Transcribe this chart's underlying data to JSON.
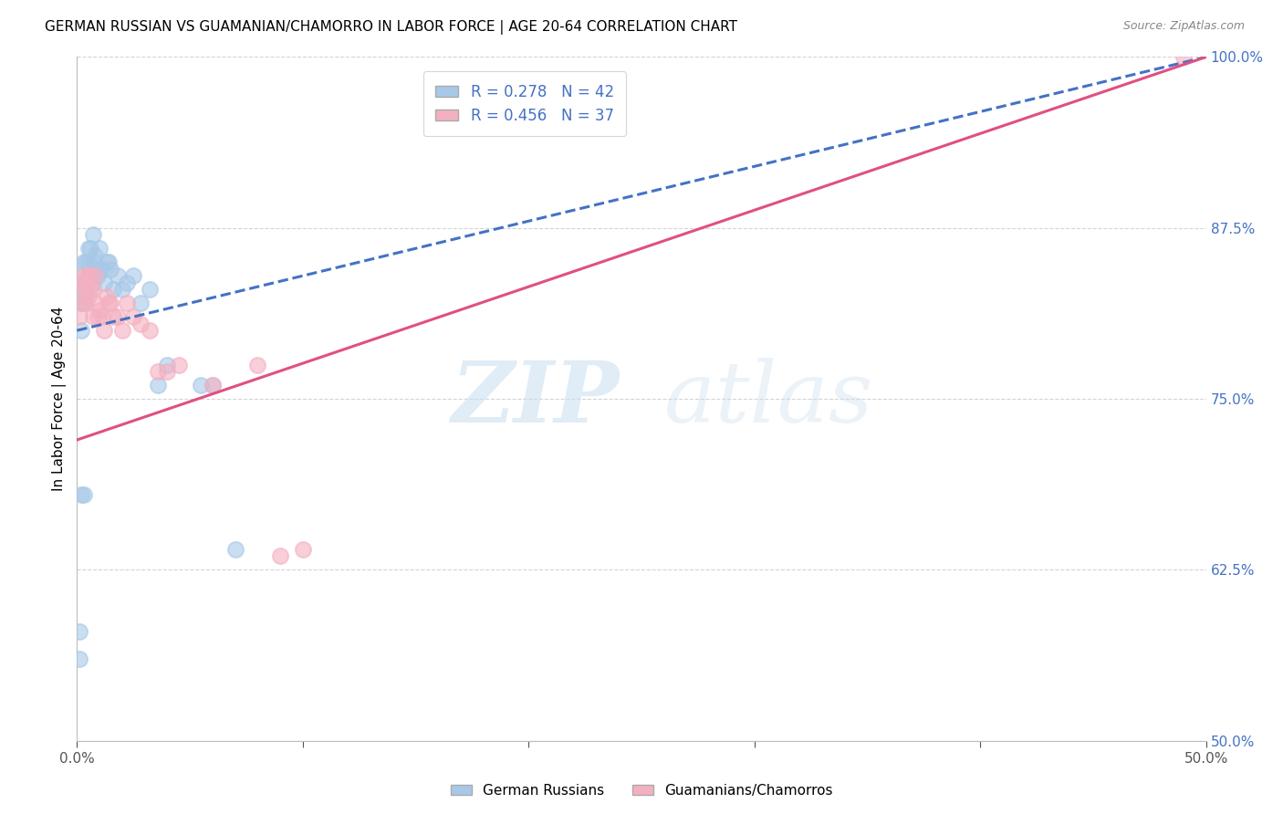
{
  "title": "GERMAN RUSSIAN VS GUAMANIAN/CHAMORRO IN LABOR FORCE | AGE 20-64 CORRELATION CHART",
  "source": "Source: ZipAtlas.com",
  "ylabel": "In Labor Force | Age 20-64",
  "xlim": [
    0.0,
    0.5
  ],
  "ylim": [
    0.5,
    1.0
  ],
  "xticks": [
    0.0,
    0.1,
    0.2,
    0.3,
    0.4,
    0.5
  ],
  "xticklabels": [
    "0.0%",
    "",
    "",
    "",
    "",
    "50.0%"
  ],
  "yticks": [
    0.5,
    0.625,
    0.75,
    0.875,
    1.0
  ],
  "yticklabels": [
    "50.0%",
    "62.5%",
    "75.0%",
    "87.5%",
    "100.0%"
  ],
  "blue_R": 0.278,
  "blue_N": 42,
  "pink_R": 0.456,
  "pink_N": 37,
  "blue_color": "#a8c8e8",
  "pink_color": "#f4b0c0",
  "blue_line_color": "#4472c4",
  "pink_line_color": "#e05080",
  "legend_label_blue": "German Russians",
  "legend_label_pink": "Guamanians/Chamorros",
  "watermark_zip": "ZIP",
  "watermark_atlas": "atlas",
  "blue_x": [
    0.001,
    0.001,
    0.002,
    0.002,
    0.002,
    0.003,
    0.003,
    0.003,
    0.004,
    0.004,
    0.005,
    0.005,
    0.005,
    0.006,
    0.006,
    0.007,
    0.007,
    0.007,
    0.008,
    0.008,
    0.009,
    0.01,
    0.01,
    0.011,
    0.012,
    0.013,
    0.014,
    0.015,
    0.016,
    0.018,
    0.02,
    0.022,
    0.025,
    0.028,
    0.032,
    0.036,
    0.04,
    0.055,
    0.06,
    0.07,
    0.002,
    0.003
  ],
  "blue_y": [
    0.56,
    0.58,
    0.8,
    0.82,
    0.84,
    0.82,
    0.83,
    0.85,
    0.83,
    0.85,
    0.84,
    0.85,
    0.86,
    0.84,
    0.86,
    0.835,
    0.85,
    0.87,
    0.84,
    0.855,
    0.84,
    0.845,
    0.86,
    0.845,
    0.835,
    0.85,
    0.85,
    0.845,
    0.83,
    0.84,
    0.83,
    0.835,
    0.84,
    0.82,
    0.83,
    0.76,
    0.775,
    0.76,
    0.76,
    0.64,
    0.68,
    0.68
  ],
  "pink_x": [
    0.001,
    0.002,
    0.002,
    0.003,
    0.003,
    0.004,
    0.004,
    0.005,
    0.005,
    0.006,
    0.006,
    0.007,
    0.007,
    0.008,
    0.008,
    0.009,
    0.01,
    0.011,
    0.012,
    0.013,
    0.014,
    0.015,
    0.016,
    0.018,
    0.02,
    0.022,
    0.025,
    0.028,
    0.032,
    0.036,
    0.04,
    0.045,
    0.06,
    0.08,
    0.09,
    0.1,
    0.49
  ],
  "pink_y": [
    0.81,
    0.82,
    0.835,
    0.83,
    0.84,
    0.82,
    0.835,
    0.825,
    0.84,
    0.83,
    0.84,
    0.81,
    0.83,
    0.82,
    0.84,
    0.81,
    0.815,
    0.81,
    0.8,
    0.825,
    0.82,
    0.82,
    0.81,
    0.81,
    0.8,
    0.82,
    0.81,
    0.805,
    0.8,
    0.77,
    0.77,
    0.775,
    0.76,
    0.775,
    0.635,
    0.64,
    1.0
  ],
  "title_fontsize": 11,
  "tick_color": "#4472c4",
  "grid_color": "#d0d0d0",
  "background_color": "#ffffff",
  "blue_trendline_y0": 0.8,
  "blue_trendline_y1": 1.0,
  "pink_trendline_y0": 0.72,
  "pink_trendline_y1": 1.0
}
